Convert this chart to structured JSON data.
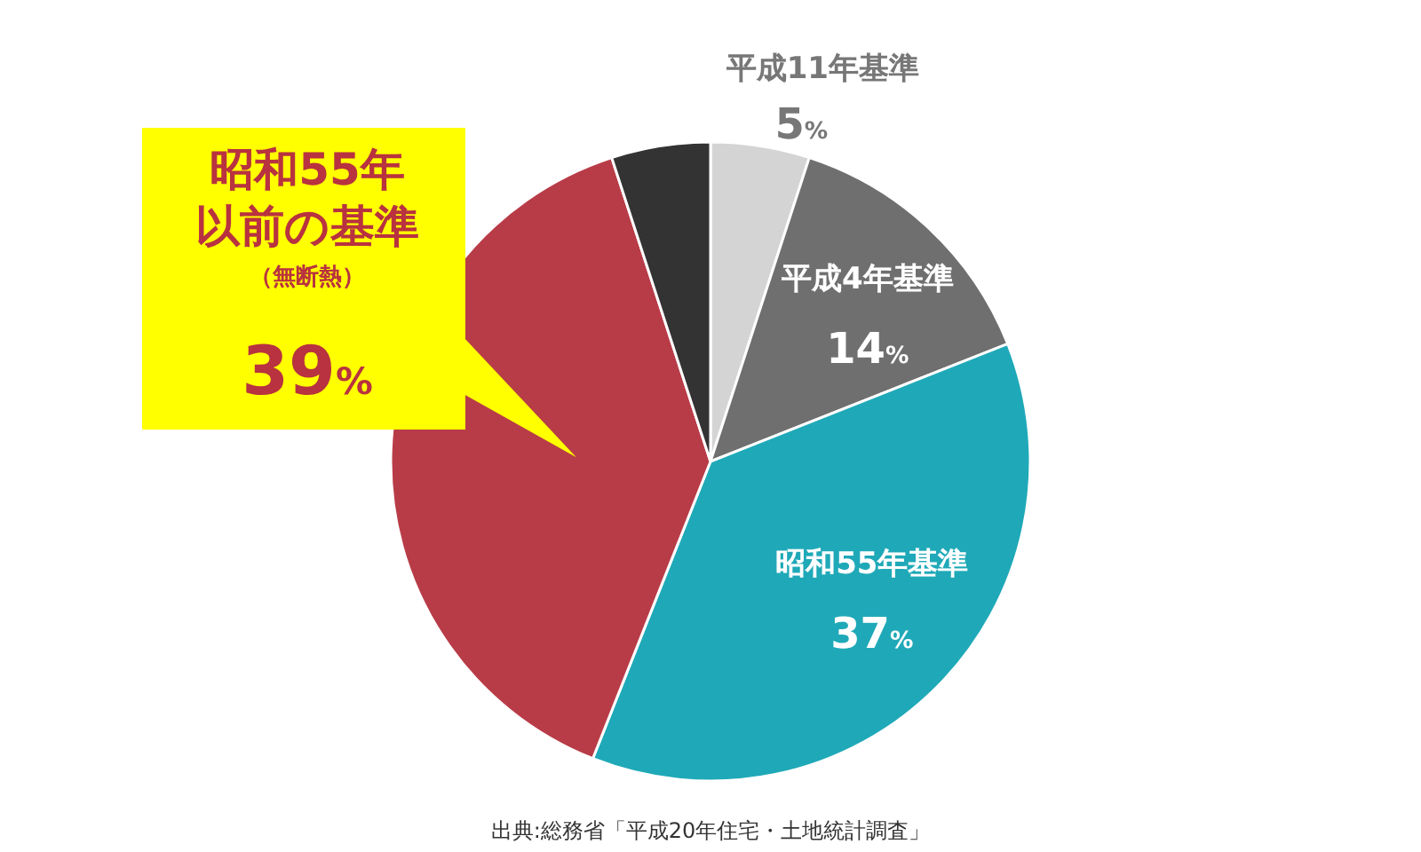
{
  "chart_data": {
    "type": "pie",
    "categories": [
      "平成11年基準",
      "平成4年基準",
      "昭和55年基準",
      "昭和55年以前の基準",
      null
    ],
    "values": [
      5,
      14,
      37,
      39,
      5
    ],
    "colors": [
      "#d4d4d4",
      "#6f6f6f",
      "#1fa9b8",
      "#b83c47",
      "#333333"
    ],
    "value_labels": [
      "5%",
      "14%",
      "37%",
      "39%",
      null
    ],
    "annotations": [
      {
        "text": "（無断熱）",
        "x": "昭和55年以前の基準"
      },
      "出典:総務省「平成20年住宅・土地統計調査」"
    ]
  }
}
